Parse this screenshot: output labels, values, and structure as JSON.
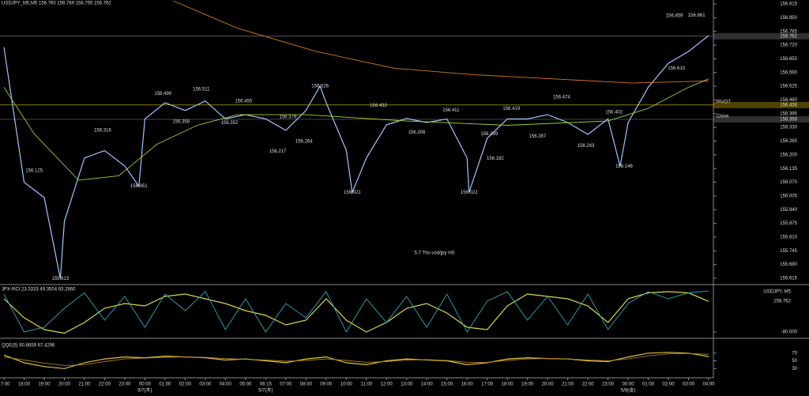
{
  "chart_data": [
    {
      "type": "line",
      "title": "USDJPY_M5,M5 156.760 156.769 156.755 156.762",
      "annotation": "5.7 Thu usd/jpy m5",
      "xlim": [
        0,
        35
      ],
      "xticks": [
        {
          "value": 0,
          "label": "17:00"
        },
        {
          "value": 1,
          "label": "18:00"
        },
        {
          "value": 2,
          "label": "19:00"
        },
        {
          "value": 3,
          "label": "20:00"
        },
        {
          "value": 4,
          "label": "21:00"
        },
        {
          "value": 5,
          "label": "22:00"
        },
        {
          "value": 6,
          "label": "23:00"
        },
        {
          "value": 7,
          "label": "00:00"
        },
        {
          "value": 8,
          "label": "01:00"
        },
        {
          "value": 9,
          "label": "02:00"
        },
        {
          "value": 10,
          "label": "03:00"
        },
        {
          "value": 11,
          "label": "04:00"
        },
        {
          "value": 12,
          "label": "05:00"
        },
        {
          "value": 13,
          "label": "06:15"
        },
        {
          "value": 14,
          "label": "07:00"
        },
        {
          "value": 15,
          "label": "08:00"
        },
        {
          "value": 16,
          "label": "09:00"
        },
        {
          "value": 17,
          "label": "10:00"
        },
        {
          "value": 18,
          "label": "11:00"
        },
        {
          "value": 19,
          "label": "12:00"
        },
        {
          "value": 20,
          "label": "13:00"
        },
        {
          "value": 21,
          "label": "14:00"
        },
        {
          "value": 22,
          "label": "15:00"
        },
        {
          "value": 23,
          "label": "16:00"
        },
        {
          "value": 24,
          "label": "17:00"
        },
        {
          "value": 25,
          "label": "18:00"
        },
        {
          "value": 26,
          "label": "19:00"
        },
        {
          "value": 27,
          "label": "20:00"
        },
        {
          "value": 28,
          "label": "21:00"
        },
        {
          "value": 29,
          "label": "22:00"
        },
        {
          "value": 30,
          "label": "23:00"
        },
        {
          "value": 31,
          "label": "00:00"
        },
        {
          "value": 32,
          "label": "01:00"
        },
        {
          "value": 33,
          "label": "02:00"
        },
        {
          "value": 34,
          "label": "03:00"
        },
        {
          "value": 35,
          "label": "04:00"
        }
      ],
      "date_labels": [
        {
          "label": "5/7(木)",
          "x": 7
        },
        {
          "label": "5/7(木)",
          "x": 13
        },
        {
          "label": "5/8(金)",
          "x": 31
        }
      ],
      "ylim": [
        155.615,
        156.915
      ],
      "yticks": [
        {
          "value": 156.915,
          "label": "156.915"
        },
        {
          "value": 156.85,
          "label": "156.850"
        },
        {
          "value": 156.785,
          "label": "156.785"
        },
        {
          "value": 156.72,
          "label": "156.720"
        },
        {
          "value": 156.655,
          "label": "156.655"
        },
        {
          "value": 156.59,
          "label": "156.590"
        },
        {
          "value": 156.525,
          "label": "156.525"
        },
        {
          "value": 156.46,
          "label": "156.460"
        },
        {
          "value": 156.395,
          "label": "156.395"
        },
        {
          "value": 156.33,
          "label": "156.330"
        },
        {
          "value": 156.265,
          "label": "156.265"
        },
        {
          "value": 156.2,
          "label": "156.200"
        },
        {
          "value": 156.135,
          "label": "156.135"
        },
        {
          "value": 156.07,
          "label": "156.070"
        },
        {
          "value": 156.005,
          "label": "156.005"
        },
        {
          "value": 155.94,
          "label": "155.940"
        },
        {
          "value": 155.875,
          "label": "155.875"
        },
        {
          "value": 155.81,
          "label": "155.810"
        },
        {
          "value": 155.745,
          "label": "155.745"
        },
        {
          "value": 155.68,
          "label": "155.680"
        },
        {
          "value": 155.615,
          "label": "155.615"
        }
      ],
      "series": [
        {
          "name": "USDJPY",
          "color": "#9ec6ff",
          "x": [
            0,
            1,
            2,
            2.8,
            3,
            4,
            5,
            6,
            6.7,
            7,
            8,
            9,
            10,
            11,
            12,
            13,
            14,
            15,
            15.7,
            16,
            17,
            17.3,
            18,
            19,
            20,
            21,
            22,
            23,
            23.1,
            24,
            25,
            26,
            27,
            28,
            29,
            30,
            30.6,
            31,
            32,
            33,
            34,
            35
          ],
          "values": [
            156.71,
            156.07,
            155.997,
            155.613,
            155.885,
            156.185,
            156.22,
            156.147,
            156.051,
            156.37,
            156.447,
            156.41,
            156.455,
            156.37,
            156.39,
            156.37,
            156.316,
            156.41,
            156.526,
            156.447,
            156.222,
            156.021,
            156.185,
            156.342,
            156.372,
            156.353,
            156.37,
            156.185,
            156.022,
            156.278,
            156.37,
            156.37,
            156.39,
            156.353,
            156.297,
            156.37,
            156.146,
            156.353,
            156.52,
            156.634,
            156.69,
            156.765
          ]
        },
        {
          "name": "MA200",
          "color": "#d2781e",
          "x": [
            8.4,
            11.6,
            15.5,
            19.4,
            23.3,
            27.3,
            31.2,
            35
          ],
          "values": [
            156.93,
            156.8,
            156.69,
            156.61,
            156.58,
            156.56,
            156.54,
            156.55
          ]
        },
        {
          "name": "MA75",
          "color": "#9acd32",
          "x": [
            0,
            1.5,
            3.7,
            5.7,
            7.6,
            9.6,
            11.6,
            15,
            20,
            25,
            30,
            32,
            34,
            35
          ],
          "values": [
            156.52,
            156.3,
            156.08,
            156.1,
            156.25,
            156.34,
            156.39,
            156.39,
            156.36,
            156.34,
            156.36,
            156.42,
            156.52,
            156.56
          ]
        }
      ],
      "annotations": [
        {
          "label": "155.613",
          "value": 155.613,
          "x": 2.8
        },
        {
          "label": "156.125",
          "value": 156.125,
          "x": 1.5
        },
        {
          "label": "156.316",
          "value": 156.316,
          "x": 4.9
        },
        {
          "label": "156.051",
          "value": 156.051,
          "x": 6.7
        },
        {
          "label": "156.490",
          "value": 156.49,
          "x": 7.9
        },
        {
          "label": "156.358",
          "value": 156.358,
          "x": 8.8
        },
        {
          "label": "156.511",
          "value": 156.511,
          "x": 9.8
        },
        {
          "label": "156.352",
          "value": 156.352,
          "x": 11.2
        },
        {
          "label": "156.455",
          "value": 156.455,
          "x": 11.9
        },
        {
          "label": "156.379",
          "value": 156.379,
          "x": 14.1
        },
        {
          "label": "156.217",
          "value": 156.217,
          "x": 13.6
        },
        {
          "label": "156.264",
          "value": 156.264,
          "x": 14.9
        },
        {
          "label": "156.526",
          "value": 156.526,
          "x": 15.7
        },
        {
          "label": "156.021",
          "value": 156.021,
          "x": 17.3
        },
        {
          "label": "156.433",
          "value": 156.433,
          "x": 18.6
        },
        {
          "label": "156.306",
          "value": 156.306,
          "x": 20.5
        },
        {
          "label": "156.411",
          "value": 156.411,
          "x": 22.2
        },
        {
          "label": "156.022",
          "value": 156.022,
          "x": 23.1
        },
        {
          "label": "156.299",
          "value": 156.299,
          "x": 24.1
        },
        {
          "label": "156.182",
          "value": 156.182,
          "x": 24.4
        },
        {
          "label": "156.419",
          "value": 156.419,
          "x": 25.2
        },
        {
          "label": "156.287",
          "value": 156.287,
          "x": 26.5
        },
        {
          "label": "156.474",
          "value": 156.474,
          "x": 27.7
        },
        {
          "label": "156.243",
          "value": 156.243,
          "x": 28.9
        },
        {
          "label": "156.402",
          "value": 156.402,
          "x": 30.3
        },
        {
          "label": "156.146",
          "value": 156.146,
          "x": 30.8
        },
        {
          "label": "156.610",
          "value": 156.61,
          "x": 33.4
        },
        {
          "label": "156.859",
          "value": 156.859,
          "x": 33.3
        },
        {
          "label": "156.861",
          "value": 156.861,
          "x": 34.4
        }
      ],
      "levels": [
        {
          "label": "PIVOT",
          "value": 156.436,
          "value_label": "156.436",
          "color": "#e0c000"
        },
        {
          "label": "Close",
          "value": 156.368,
          "value_label": "156.368",
          "color": "#8a8a8a"
        },
        {
          "value": 156.762,
          "value_label": "156.762",
          "color": "#8a8a8a"
        }
      ]
    },
    {
      "type": "line",
      "title": "JPX-RCI 23.3333 49.3504 93.2660",
      "xlim": [
        0,
        35
      ],
      "ylim": [
        -100,
        100
      ],
      "yticks": [
        {
          "value": 80,
          "label": "80.000"
        },
        {
          "value": -80,
          "label": "-80.000"
        }
      ],
      "info_box": {
        "symbol": "USDJPY, M5",
        "price": 156.762,
        "price_label": "156.762"
      },
      "series": [
        {
          "name": "RCI long",
          "color": "#d8d84a",
          "x": [
            0,
            1,
            2,
            3,
            4,
            5,
            6,
            7,
            8,
            9,
            10,
            11,
            12,
            13,
            14,
            15,
            16,
            17,
            18,
            19,
            20,
            21,
            22,
            23,
            24,
            25,
            26,
            27,
            28,
            29,
            30,
            31,
            32,
            33,
            34,
            35
          ],
          "values": [
            60,
            -20,
            -70,
            -85,
            -40,
            20,
            40,
            30,
            70,
            80,
            60,
            40,
            10,
            -10,
            -50,
            -30,
            60,
            -30,
            -80,
            -40,
            20,
            40,
            0,
            -60,
            -70,
            30,
            80,
            70,
            60,
            30,
            -40,
            60,
            85,
            90,
            85,
            49
          ]
        },
        {
          "name": "RCI short",
          "color": "#2aa9b8",
          "x": [
            0,
            1,
            2,
            3,
            4,
            5,
            6,
            7,
            8,
            9,
            10,
            11,
            12,
            13,
            14,
            15,
            16,
            17,
            18,
            19,
            20,
            21,
            22,
            23,
            24,
            25,
            26,
            27,
            28,
            29,
            30,
            31,
            32,
            33,
            34,
            35
          ],
          "values": [
            80,
            -80,
            -60,
            20,
            85,
            -30,
            70,
            -60,
            80,
            10,
            90,
            -70,
            60,
            -80,
            40,
            -20,
            90,
            -80,
            60,
            -40,
            70,
            -60,
            80,
            -80,
            50,
            90,
            -30,
            70,
            -50,
            80,
            -70,
            40,
            90,
            60,
            85,
            93
          ]
        }
      ]
    },
    {
      "type": "line",
      "title": "QQE(5) 60.8659 67.4296",
      "xlim": [
        0,
        35
      ],
      "ylim": [
        10,
        90
      ],
      "yticks": [
        70,
        50,
        30
      ],
      "series": [
        {
          "name": "QQE",
          "color": "#d8c23a",
          "x": [
            0,
            1,
            2,
            3,
            4,
            5,
            6,
            7,
            8,
            9,
            10,
            11,
            12,
            13,
            14,
            15,
            16,
            17,
            18,
            19,
            20,
            21,
            22,
            23,
            24,
            25,
            26,
            27,
            28,
            29,
            30,
            31,
            32,
            33,
            34,
            35
          ],
          "values": [
            65,
            45,
            35,
            30,
            45,
            55,
            60,
            58,
            62,
            60,
            58,
            52,
            55,
            50,
            45,
            55,
            60,
            45,
            40,
            50,
            55,
            52,
            50,
            40,
            45,
            55,
            58,
            56,
            55,
            50,
            48,
            60,
            70,
            72,
            70,
            61
          ]
        },
        {
          "name": "QQE slow",
          "color": "#b07a28",
          "x": [
            0,
            1,
            2,
            3,
            4,
            5,
            6,
            7,
            8,
            9,
            10,
            11,
            12,
            13,
            14,
            15,
            16,
            17,
            18,
            19,
            20,
            21,
            22,
            23,
            24,
            25,
            26,
            27,
            28,
            29,
            30,
            31,
            32,
            33,
            34,
            35
          ],
          "values": [
            60,
            52,
            44,
            38,
            40,
            48,
            55,
            57,
            59,
            60,
            59,
            56,
            54,
            52,
            49,
            51,
            55,
            51,
            46,
            48,
            52,
            53,
            51,
            46,
            46,
            51,
            55,
            56,
            55,
            52,
            50,
            55,
            63,
            68,
            69,
            67
          ]
        }
      ]
    }
  ]
}
